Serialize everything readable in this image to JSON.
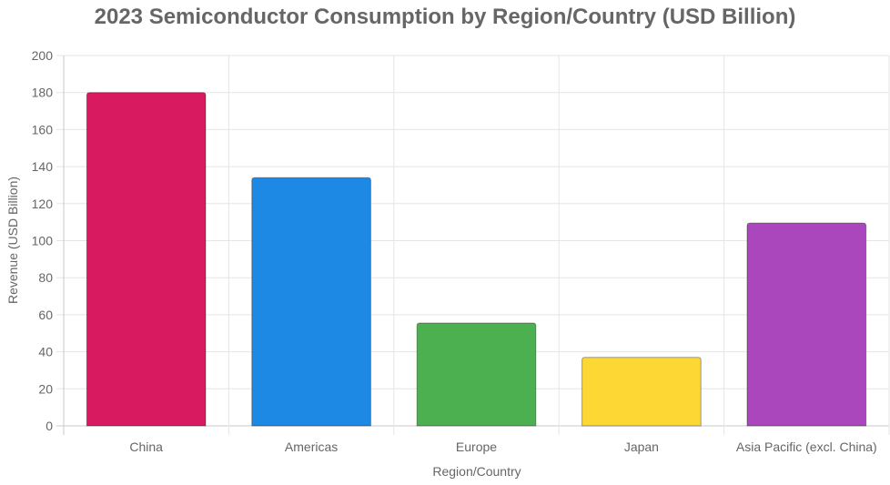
{
  "chart_data": {
    "type": "bar",
    "title": "2023 Semiconductor Consumption by Region/Country (USD Billion)",
    "xlabel": "Region/Country",
    "ylabel": "Revenue (USD Billion)",
    "categories": [
      "China",
      "Americas",
      "Europe",
      "Japan",
      "Asia Pacific (excl. China)"
    ],
    "series": [
      {
        "values": [
          180,
          134,
          55.5,
          37,
          109.5
        ],
        "colors": [
          "#D81B60",
          "#1E88E5",
          "#4CAF50",
          "#FDD835",
          "#AB47BC"
        ]
      }
    ],
    "ylim": [
      0,
      200
    ],
    "yticks": [
      0,
      20,
      40,
      60,
      80,
      100,
      120,
      140,
      160,
      180,
      200
    ],
    "grid": true,
    "legend": "none"
  }
}
